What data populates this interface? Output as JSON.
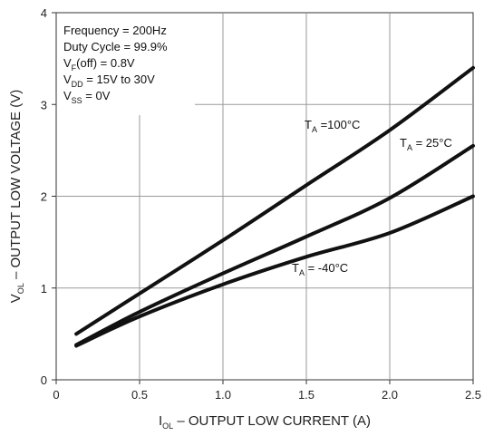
{
  "chart_data": {
    "type": "line",
    "xlabel": {
      "main": "I",
      "sub": "OL",
      "rest": " – OUTPUT LOW CURRENT (A)"
    },
    "ylabel": {
      "main": "V",
      "sub": "OL",
      "rest": " – OUTPUT LOW VOLTAGE (V)"
    },
    "xlim": [
      0,
      2.5
    ],
    "ylim": [
      0,
      4
    ],
    "xticks": [
      "0",
      "0.5",
      "1.0",
      "1.5",
      "2.0",
      "2.5"
    ],
    "yticks": [
      "0",
      "1",
      "2",
      "3",
      "4"
    ],
    "grid": true,
    "conditions": [
      {
        "main": "Frequency = 200Hz",
        "sub": "",
        "rest": ""
      },
      {
        "main": "Duty Cycle = 99.9%",
        "sub": "",
        "rest": ""
      },
      {
        "main": "V",
        "sub": "F",
        "rest": "(off) = 0.8V"
      },
      {
        "main": "V",
        "sub": "DD",
        "rest": " = 15V to 30V"
      },
      {
        "main": "V",
        "sub": "SS",
        "rest": " = 0V"
      }
    ],
    "series": [
      {
        "label": {
          "main": "T",
          "sub": "A",
          "rest": " =100°C"
        },
        "x": [
          0.12,
          0.5,
          1.0,
          1.5,
          2.0,
          2.5
        ],
        "y": [
          0.5,
          0.94,
          1.52,
          2.12,
          2.72,
          3.4
        ]
      },
      {
        "label": {
          "main": "T",
          "sub": "A",
          "rest": " = 25°C"
        },
        "x": [
          0.12,
          0.5,
          1.0,
          1.5,
          2.0,
          2.5
        ],
        "y": [
          0.38,
          0.74,
          1.16,
          1.56,
          1.98,
          2.55
        ]
      },
      {
        "label": {
          "main": "T",
          "sub": "A",
          "rest": " = -40°C"
        },
        "x": [
          0.12,
          0.5,
          1.0,
          1.5,
          2.0,
          2.5
        ],
        "y": [
          0.37,
          0.69,
          1.04,
          1.34,
          1.6,
          2.0
        ]
      }
    ]
  }
}
